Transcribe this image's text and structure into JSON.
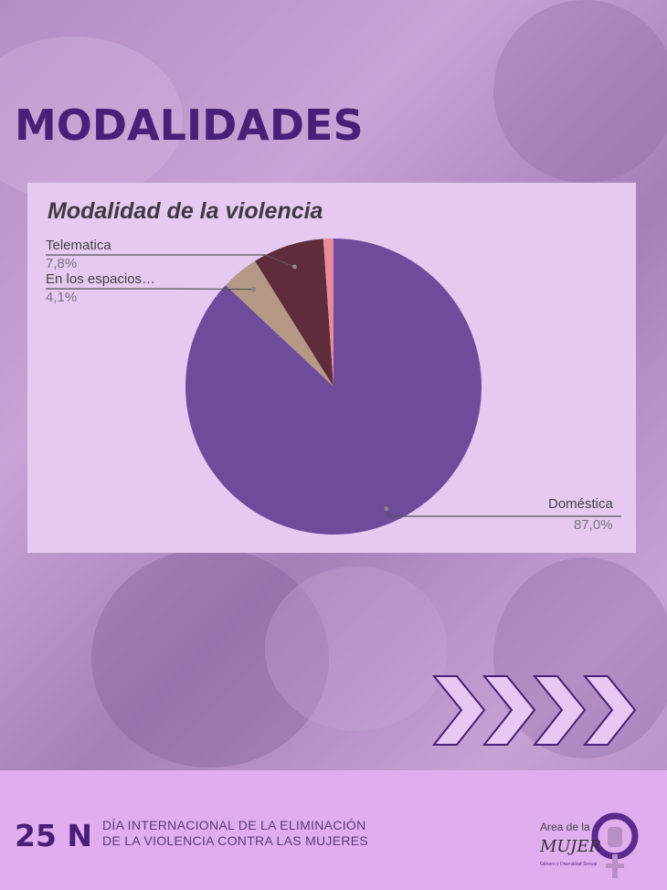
{
  "header": {
    "title": "MODALIDADES"
  },
  "chart_data": {
    "type": "pie",
    "title": "Modalidad de la violencia",
    "categories": [
      "Doméstica",
      "En los espacios…",
      "Telematica",
      ""
    ],
    "values": [
      87.0,
      4.1,
      7.8,
      1.1
    ],
    "value_labels": [
      "87,0%",
      "4,1%",
      "7,8%",
      ""
    ],
    "colors": [
      "#6f4b9c",
      "#b59886",
      "#5e2c3a",
      "#e88a9a"
    ]
  },
  "footer": {
    "date_badge": "25 N",
    "line1": "DÍA INTERNACIONAL DE LA ELIMINACIÓN",
    "line2": "DE LA VIOLENCIA CONTRA LAS MUJERES",
    "logo": {
      "line1": "Area de la",
      "line2": "MUJER",
      "line3": "Género y Diversidad Sexual"
    }
  },
  "colors": {
    "accent": "#4a1f78",
    "footer_bg": "#e0aeee",
    "chart_bg": "#e6c9f1"
  }
}
